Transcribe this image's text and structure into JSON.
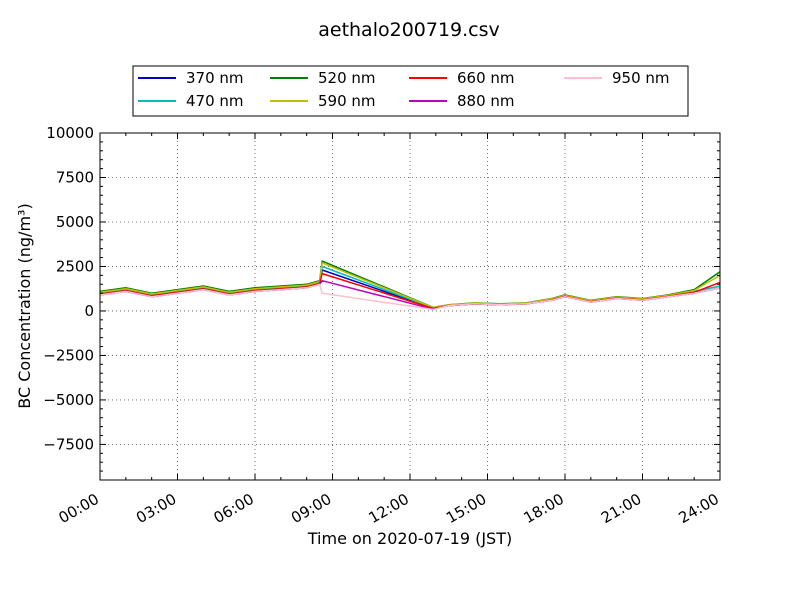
{
  "chart_data": {
    "type": "line",
    "title": "aethalo200719.csv",
    "xlabel": "Time on 2020-07-19 (JST)",
    "ylabel": "BC Concentration (ng/m³)",
    "xlim": [
      "00:00",
      "24:00"
    ],
    "ylim": [
      -9500,
      10000
    ],
    "grid": true,
    "legend_location": "top, above plot",
    "x_ticks": [
      "00:00",
      "03:00",
      "06:00",
      "09:00",
      "12:00",
      "15:00",
      "18:00",
      "21:00",
      "24:00"
    ],
    "y_ticks": [
      "−7500",
      "−5000",
      "−2500",
      "0",
      "2500",
      "5000",
      "7500",
      "10000"
    ],
    "series": [
      {
        "name": "370 nm",
        "color": "#0000cc",
        "values": [
          [
            0.0,
            900
          ],
          [
            1.0,
            1100
          ],
          [
            2.0,
            800
          ],
          [
            3.0,
            1000
          ],
          [
            4.0,
            1200
          ],
          [
            5.0,
            900
          ],
          [
            6.0,
            1100
          ],
          [
            7.0,
            1200
          ],
          [
            8.0,
            1300
          ],
          [
            8.5,
            1500
          ],
          [
            8.6,
            2300
          ],
          [
            12.9,
            150
          ],
          [
            13.5,
            300
          ],
          [
            14.5,
            400
          ],
          [
            15.5,
            350
          ],
          [
            16.5,
            400
          ],
          [
            17.5,
            600
          ],
          [
            18.0,
            800
          ],
          [
            19.0,
            500
          ],
          [
            20.0,
            700
          ],
          [
            21.0,
            600
          ],
          [
            22.0,
            800
          ],
          [
            23.0,
            1000
          ],
          [
            24.0,
            1300
          ]
        ]
      },
      {
        "name": "470 nm",
        "color": "#00bfbf",
        "values": [
          [
            0.0,
            1000
          ],
          [
            1.0,
            1200
          ],
          [
            2.0,
            900
          ],
          [
            3.0,
            1100
          ],
          [
            4.0,
            1300
          ],
          [
            5.0,
            1000
          ],
          [
            6.0,
            1200
          ],
          [
            7.0,
            1300
          ],
          [
            8.0,
            1400
          ],
          [
            8.5,
            1600
          ],
          [
            8.6,
            2500
          ],
          [
            12.9,
            170
          ],
          [
            13.5,
            330
          ],
          [
            14.5,
            420
          ],
          [
            15.5,
            380
          ],
          [
            16.5,
            420
          ],
          [
            17.5,
            650
          ],
          [
            18.0,
            850
          ],
          [
            19.0,
            550
          ],
          [
            20.0,
            750
          ],
          [
            21.0,
            650
          ],
          [
            22.0,
            850
          ],
          [
            23.0,
            1100
          ],
          [
            24.0,
            1400
          ]
        ]
      },
      {
        "name": "520 nm",
        "color": "#008000",
        "values": [
          [
            0.0,
            1100
          ],
          [
            1.0,
            1300
          ],
          [
            2.0,
            1000
          ],
          [
            3.0,
            1200
          ],
          [
            4.0,
            1400
          ],
          [
            5.0,
            1100
          ],
          [
            6.0,
            1300
          ],
          [
            7.0,
            1400
          ],
          [
            8.0,
            1500
          ],
          [
            8.5,
            1700
          ],
          [
            8.6,
            2800
          ],
          [
            12.9,
            200
          ],
          [
            13.5,
            350
          ],
          [
            14.5,
            450
          ],
          [
            15.5,
            400
          ],
          [
            16.5,
            450
          ],
          [
            17.5,
            700
          ],
          [
            18.0,
            900
          ],
          [
            19.0,
            600
          ],
          [
            20.0,
            800
          ],
          [
            21.0,
            700
          ],
          [
            22.0,
            900
          ],
          [
            23.0,
            1200
          ],
          [
            24.0,
            2200
          ]
        ]
      },
      {
        "name": "590 nm",
        "color": "#bfbf00",
        "values": [
          [
            0.0,
            1050
          ],
          [
            1.0,
            1250
          ],
          [
            2.0,
            950
          ],
          [
            3.0,
            1150
          ],
          [
            4.0,
            1350
          ],
          [
            5.0,
            1050
          ],
          [
            6.0,
            1250
          ],
          [
            7.0,
            1350
          ],
          [
            8.0,
            1450
          ],
          [
            8.5,
            1650
          ],
          [
            8.6,
            2700
          ],
          [
            12.9,
            190
          ],
          [
            13.5,
            340
          ],
          [
            14.5,
            440
          ],
          [
            15.5,
            390
          ],
          [
            16.5,
            440
          ],
          [
            17.5,
            680
          ],
          [
            18.0,
            880
          ],
          [
            19.0,
            580
          ],
          [
            20.0,
            780
          ],
          [
            21.0,
            680
          ],
          [
            22.0,
            880
          ],
          [
            23.0,
            1150
          ],
          [
            24.0,
            2000
          ]
        ]
      },
      {
        "name": "660 nm",
        "color": "#ff0000",
        "values": [
          [
            0.0,
            950
          ],
          [
            1.0,
            1150
          ],
          [
            2.0,
            850
          ],
          [
            3.0,
            1050
          ],
          [
            4.0,
            1250
          ],
          [
            5.0,
            950
          ],
          [
            6.0,
            1150
          ],
          [
            7.0,
            1250
          ],
          [
            8.0,
            1350
          ],
          [
            8.5,
            1550
          ],
          [
            8.6,
            2100
          ],
          [
            12.9,
            140
          ],
          [
            13.5,
            300
          ],
          [
            14.5,
            390
          ],
          [
            15.5,
            350
          ],
          [
            16.5,
            390
          ],
          [
            17.5,
            620
          ],
          [
            18.0,
            820
          ],
          [
            19.0,
            520
          ],
          [
            20.0,
            720
          ],
          [
            21.0,
            620
          ],
          [
            22.0,
            820
          ],
          [
            23.0,
            1050
          ],
          [
            24.0,
            1600
          ]
        ]
      },
      {
        "name": "880 nm",
        "color": "#bf00bf",
        "values": [
          [
            0.0,
            900
          ],
          [
            1.0,
            1100
          ],
          [
            2.0,
            800
          ],
          [
            3.0,
            1000
          ],
          [
            4.0,
            1200
          ],
          [
            5.0,
            900
          ],
          [
            6.0,
            1100
          ],
          [
            7.0,
            1200
          ],
          [
            8.0,
            1300
          ],
          [
            8.5,
            1500
          ],
          [
            8.6,
            1700
          ],
          [
            12.9,
            100
          ],
          [
            13.5,
            300
          ],
          [
            14.5,
            400
          ],
          [
            15.5,
            350
          ],
          [
            16.5,
            400
          ],
          [
            17.5,
            600
          ],
          [
            18.0,
            800
          ],
          [
            19.0,
            500
          ],
          [
            20.0,
            700
          ],
          [
            21.0,
            600
          ],
          [
            22.0,
            800
          ],
          [
            23.0,
            1000
          ],
          [
            24.0,
            1300
          ]
        ]
      },
      {
        "name": "950 nm",
        "color": "#ffc0cb",
        "values": [
          [
            0.0,
            900
          ],
          [
            1.0,
            1100
          ],
          [
            2.0,
            800
          ],
          [
            3.0,
            1000
          ],
          [
            4.0,
            1200
          ],
          [
            5.0,
            900
          ],
          [
            6.0,
            1100
          ],
          [
            7.0,
            1200
          ],
          [
            8.0,
            1300
          ],
          [
            8.5,
            1500
          ],
          [
            8.6,
            1000
          ],
          [
            12.9,
            80
          ],
          [
            13.5,
            300
          ],
          [
            14.5,
            400
          ],
          [
            15.5,
            350
          ],
          [
            16.5,
            400
          ],
          [
            17.5,
            600
          ],
          [
            18.0,
            800
          ],
          [
            19.0,
            500
          ],
          [
            20.0,
            700
          ],
          [
            21.0,
            600
          ],
          [
            22.0,
            800
          ],
          [
            23.0,
            1000
          ],
          [
            24.0,
            1300
          ]
        ]
      }
    ]
  }
}
